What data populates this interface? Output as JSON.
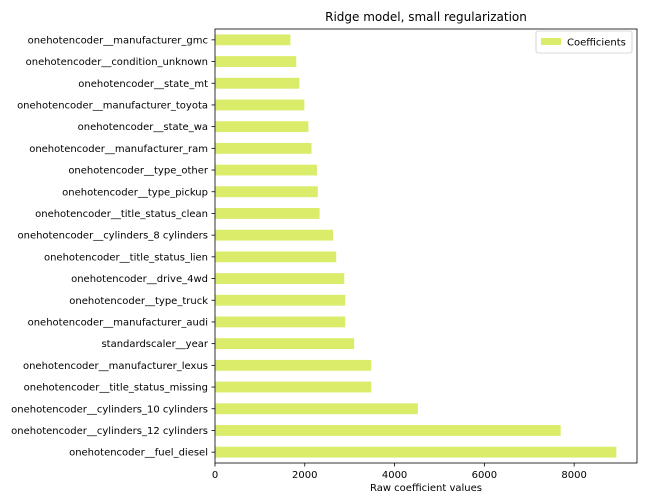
{
  "chart_data": {
    "type": "bar",
    "orientation": "horizontal",
    "title": "Ridge model, small regularization",
    "xlabel": "Raw coefficient values",
    "ylabel": "",
    "xlim": [
      0,
      9400
    ],
    "x_ticks": [
      0,
      2000,
      4000,
      6000,
      8000
    ],
    "x_tick_labels": [
      "0",
      "2000",
      "4000",
      "6000",
      "8000"
    ],
    "categories": [
      "onehotencoder__manufacturer_gmc",
      "onehotencoder__condition_unknown",
      "onehotencoder__state_mt",
      "onehotencoder__manufacturer_toyota",
      "onehotencoder__state_wa",
      "onehotencoder__manufacturer_ram",
      "onehotencoder__type_other",
      "onehotencoder__type_pickup",
      "onehotencoder__title_status_clean",
      "onehotencoder__cylinders_8 cylinders",
      "onehotencoder__title_status_lien",
      "onehotencoder__drive_4wd",
      "onehotencoder__type_truck",
      "onehotencoder__manufacturer_audi",
      "standardscaler__year",
      "onehotencoder__manufacturer_lexus",
      "onehotencoder__title_status_missing",
      "onehotencoder__cylinders_10 cylinders",
      "onehotencoder__cylinders_12 cylinders",
      "onehotencoder__fuel_diesel"
    ],
    "series": [
      {
        "name": "Coefficients",
        "color": "#dbec6b",
        "values": [
          1680,
          1810,
          1880,
          1990,
          2080,
          2150,
          2270,
          2290,
          2330,
          2630,
          2700,
          2880,
          2900,
          2900,
          3100,
          3480,
          3480,
          4520,
          7700,
          8940
        ]
      }
    ],
    "legend_position": "top-right",
    "grid": false
  }
}
